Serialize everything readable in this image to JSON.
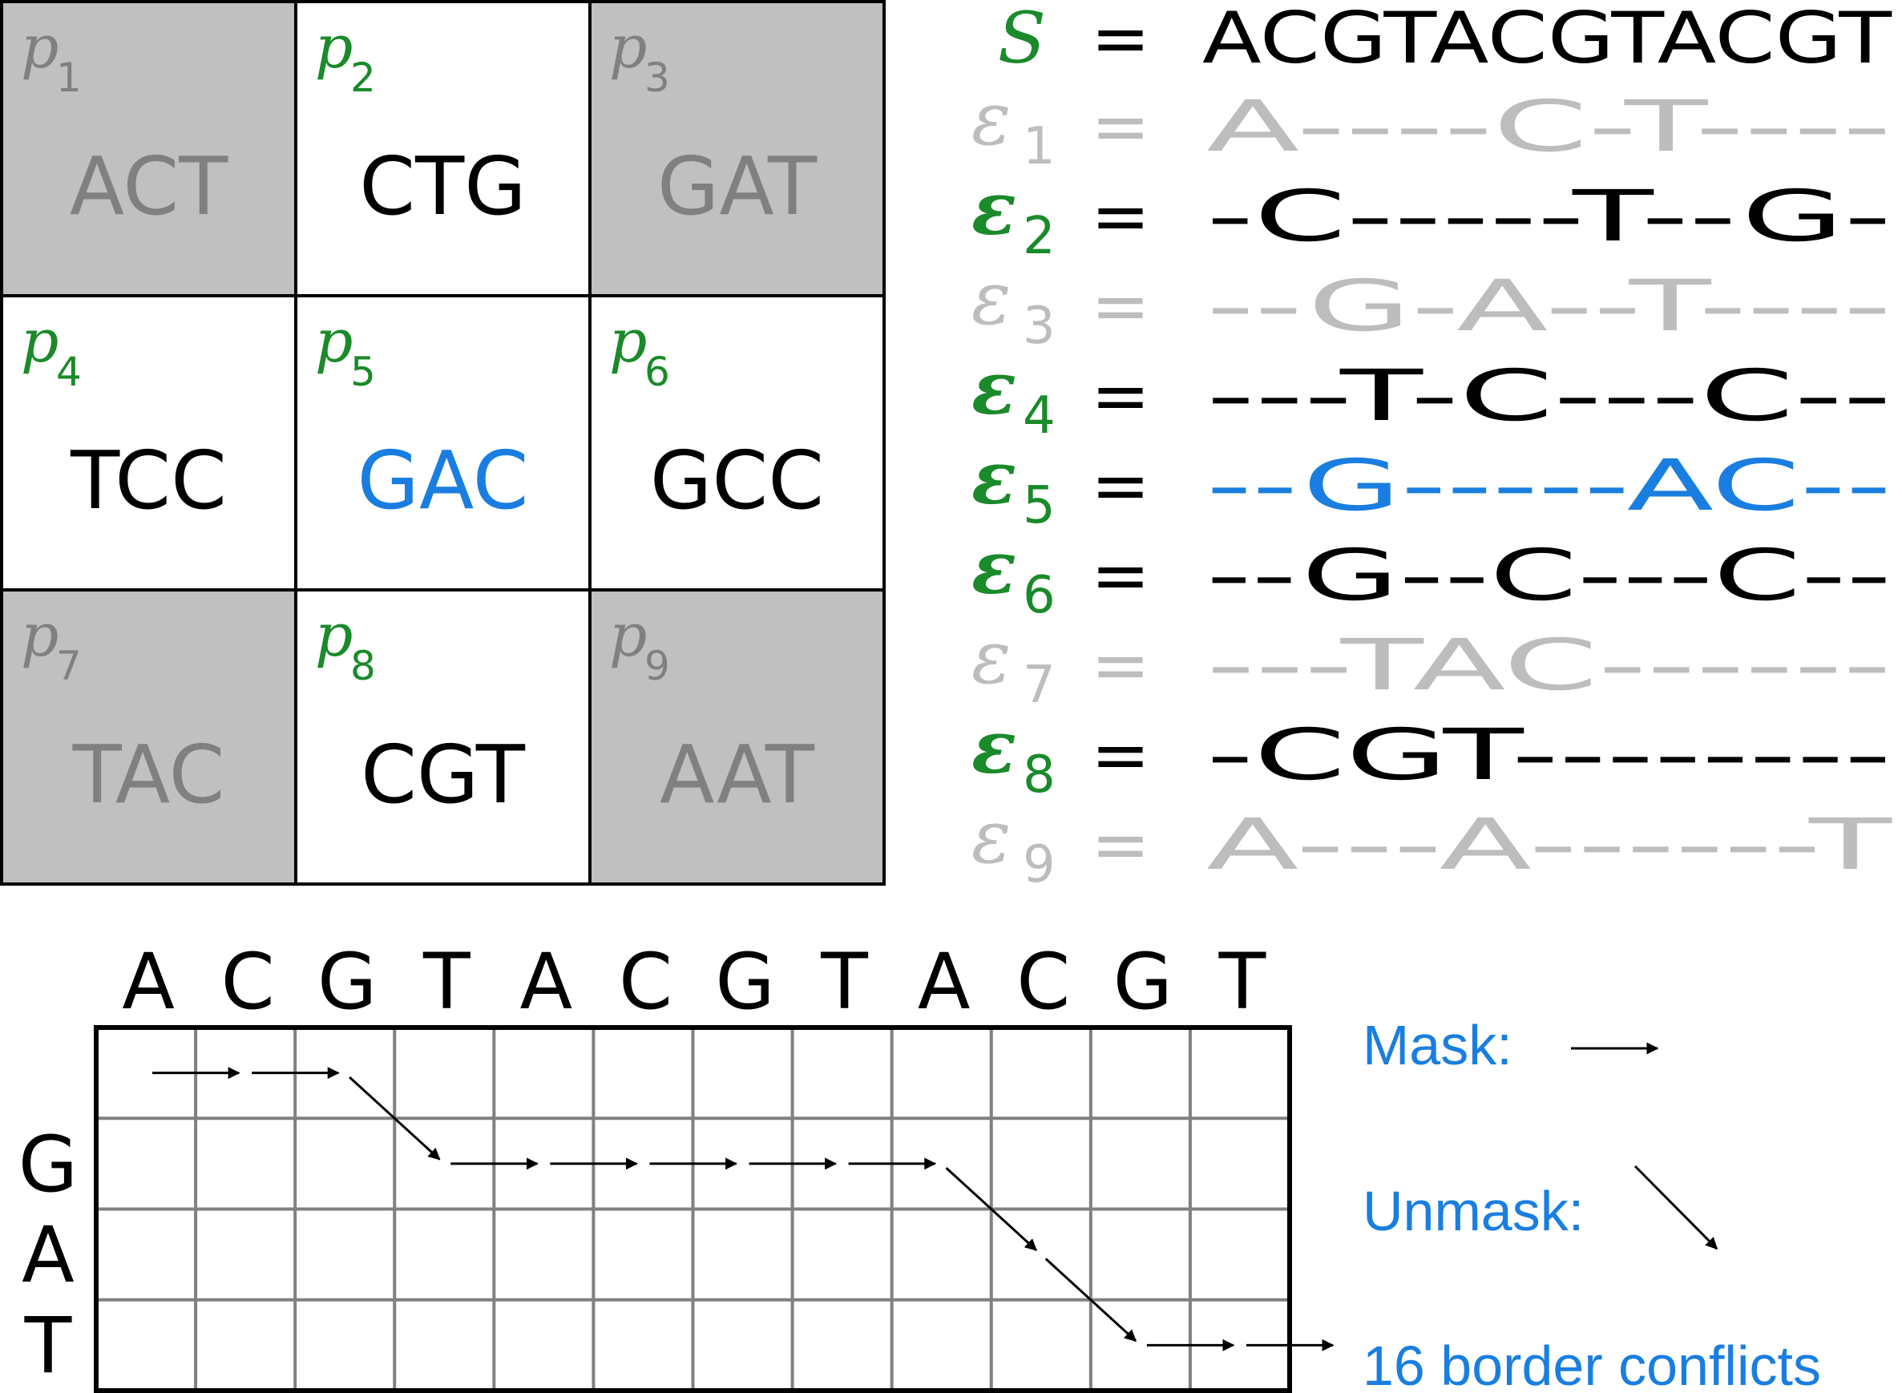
{
  "colors": {
    "black": "#000000",
    "green": "#1a8a2a",
    "blue": "#1a7ee0",
    "gray_text": "#808080",
    "light_text": "#bdbdbd",
    "cell_fill_gray": "#c0c0c0",
    "grid_line": "#808080"
  },
  "patches": [
    {
      "index": "1",
      "seq": "ACT",
      "state": "masked"
    },
    {
      "index": "2",
      "seq": "CTG",
      "state": "active"
    },
    {
      "index": "3",
      "seq": "GAT",
      "state": "masked"
    },
    {
      "index": "4",
      "seq": "TCC",
      "state": "active"
    },
    {
      "index": "5",
      "seq": "GAC",
      "state": "highlight"
    },
    {
      "index": "6",
      "seq": "GCC",
      "state": "active"
    },
    {
      "index": "7",
      "seq": "TAC",
      "state": "masked"
    },
    {
      "index": "8",
      "seq": "CGT",
      "state": "active"
    },
    {
      "index": "9",
      "seq": "AAT",
      "state": "masked"
    }
  ],
  "patch_letter": "p",
  "sequence": {
    "symbol": "S",
    "equals": "=",
    "value": "ACGTACGTACGT"
  },
  "embeddings": [
    {
      "index": "1",
      "value": "A----C-T----",
      "state": "masked"
    },
    {
      "index": "2",
      "value": "-C-----T--G-",
      "state": "active"
    },
    {
      "index": "3",
      "value": "--G-A--T----",
      "state": "masked"
    },
    {
      "index": "4",
      "value": "---T-C---C--",
      "state": "active"
    },
    {
      "index": "5",
      "value": "--G-----AC--",
      "state": "highlight"
    },
    {
      "index": "6",
      "value": "--G--C---C--",
      "state": "active"
    },
    {
      "index": "7",
      "value": "---TAC------",
      "state": "masked"
    },
    {
      "index": "8",
      "value": "-CGT--------",
      "state": "active"
    },
    {
      "index": "9",
      "value": "A---A------T",
      "state": "masked"
    }
  ],
  "embedding_symbol": "ε",
  "alignment": {
    "columns": [
      "A",
      "C",
      "G",
      "T",
      "A",
      "C",
      "G",
      "T",
      "A",
      "C",
      "G",
      "T"
    ],
    "rows": [
      "G",
      "A",
      "T"
    ],
    "path": [
      {
        "row": 0,
        "col": 0,
        "move": "mask"
      },
      {
        "row": 0,
        "col": 1,
        "move": "mask"
      },
      {
        "row": 0,
        "col": 2,
        "move": "unmask"
      },
      {
        "row": 1,
        "col": 3,
        "move": "mask"
      },
      {
        "row": 1,
        "col": 4,
        "move": "mask"
      },
      {
        "row": 1,
        "col": 5,
        "move": "mask"
      },
      {
        "row": 1,
        "col": 6,
        "move": "mask"
      },
      {
        "row": 1,
        "col": 7,
        "move": "mask"
      },
      {
        "row": 1,
        "col": 8,
        "move": "unmask"
      },
      {
        "row": 2,
        "col": 9,
        "move": "unmask"
      },
      {
        "row": 3,
        "col": 10,
        "move": "mask"
      },
      {
        "row": 3,
        "col": 11,
        "move": "mask"
      }
    ]
  },
  "legend": {
    "mask_label": "Mask:",
    "unmask_label": "Unmask:",
    "conflicts_label": "16 border conflicts"
  }
}
